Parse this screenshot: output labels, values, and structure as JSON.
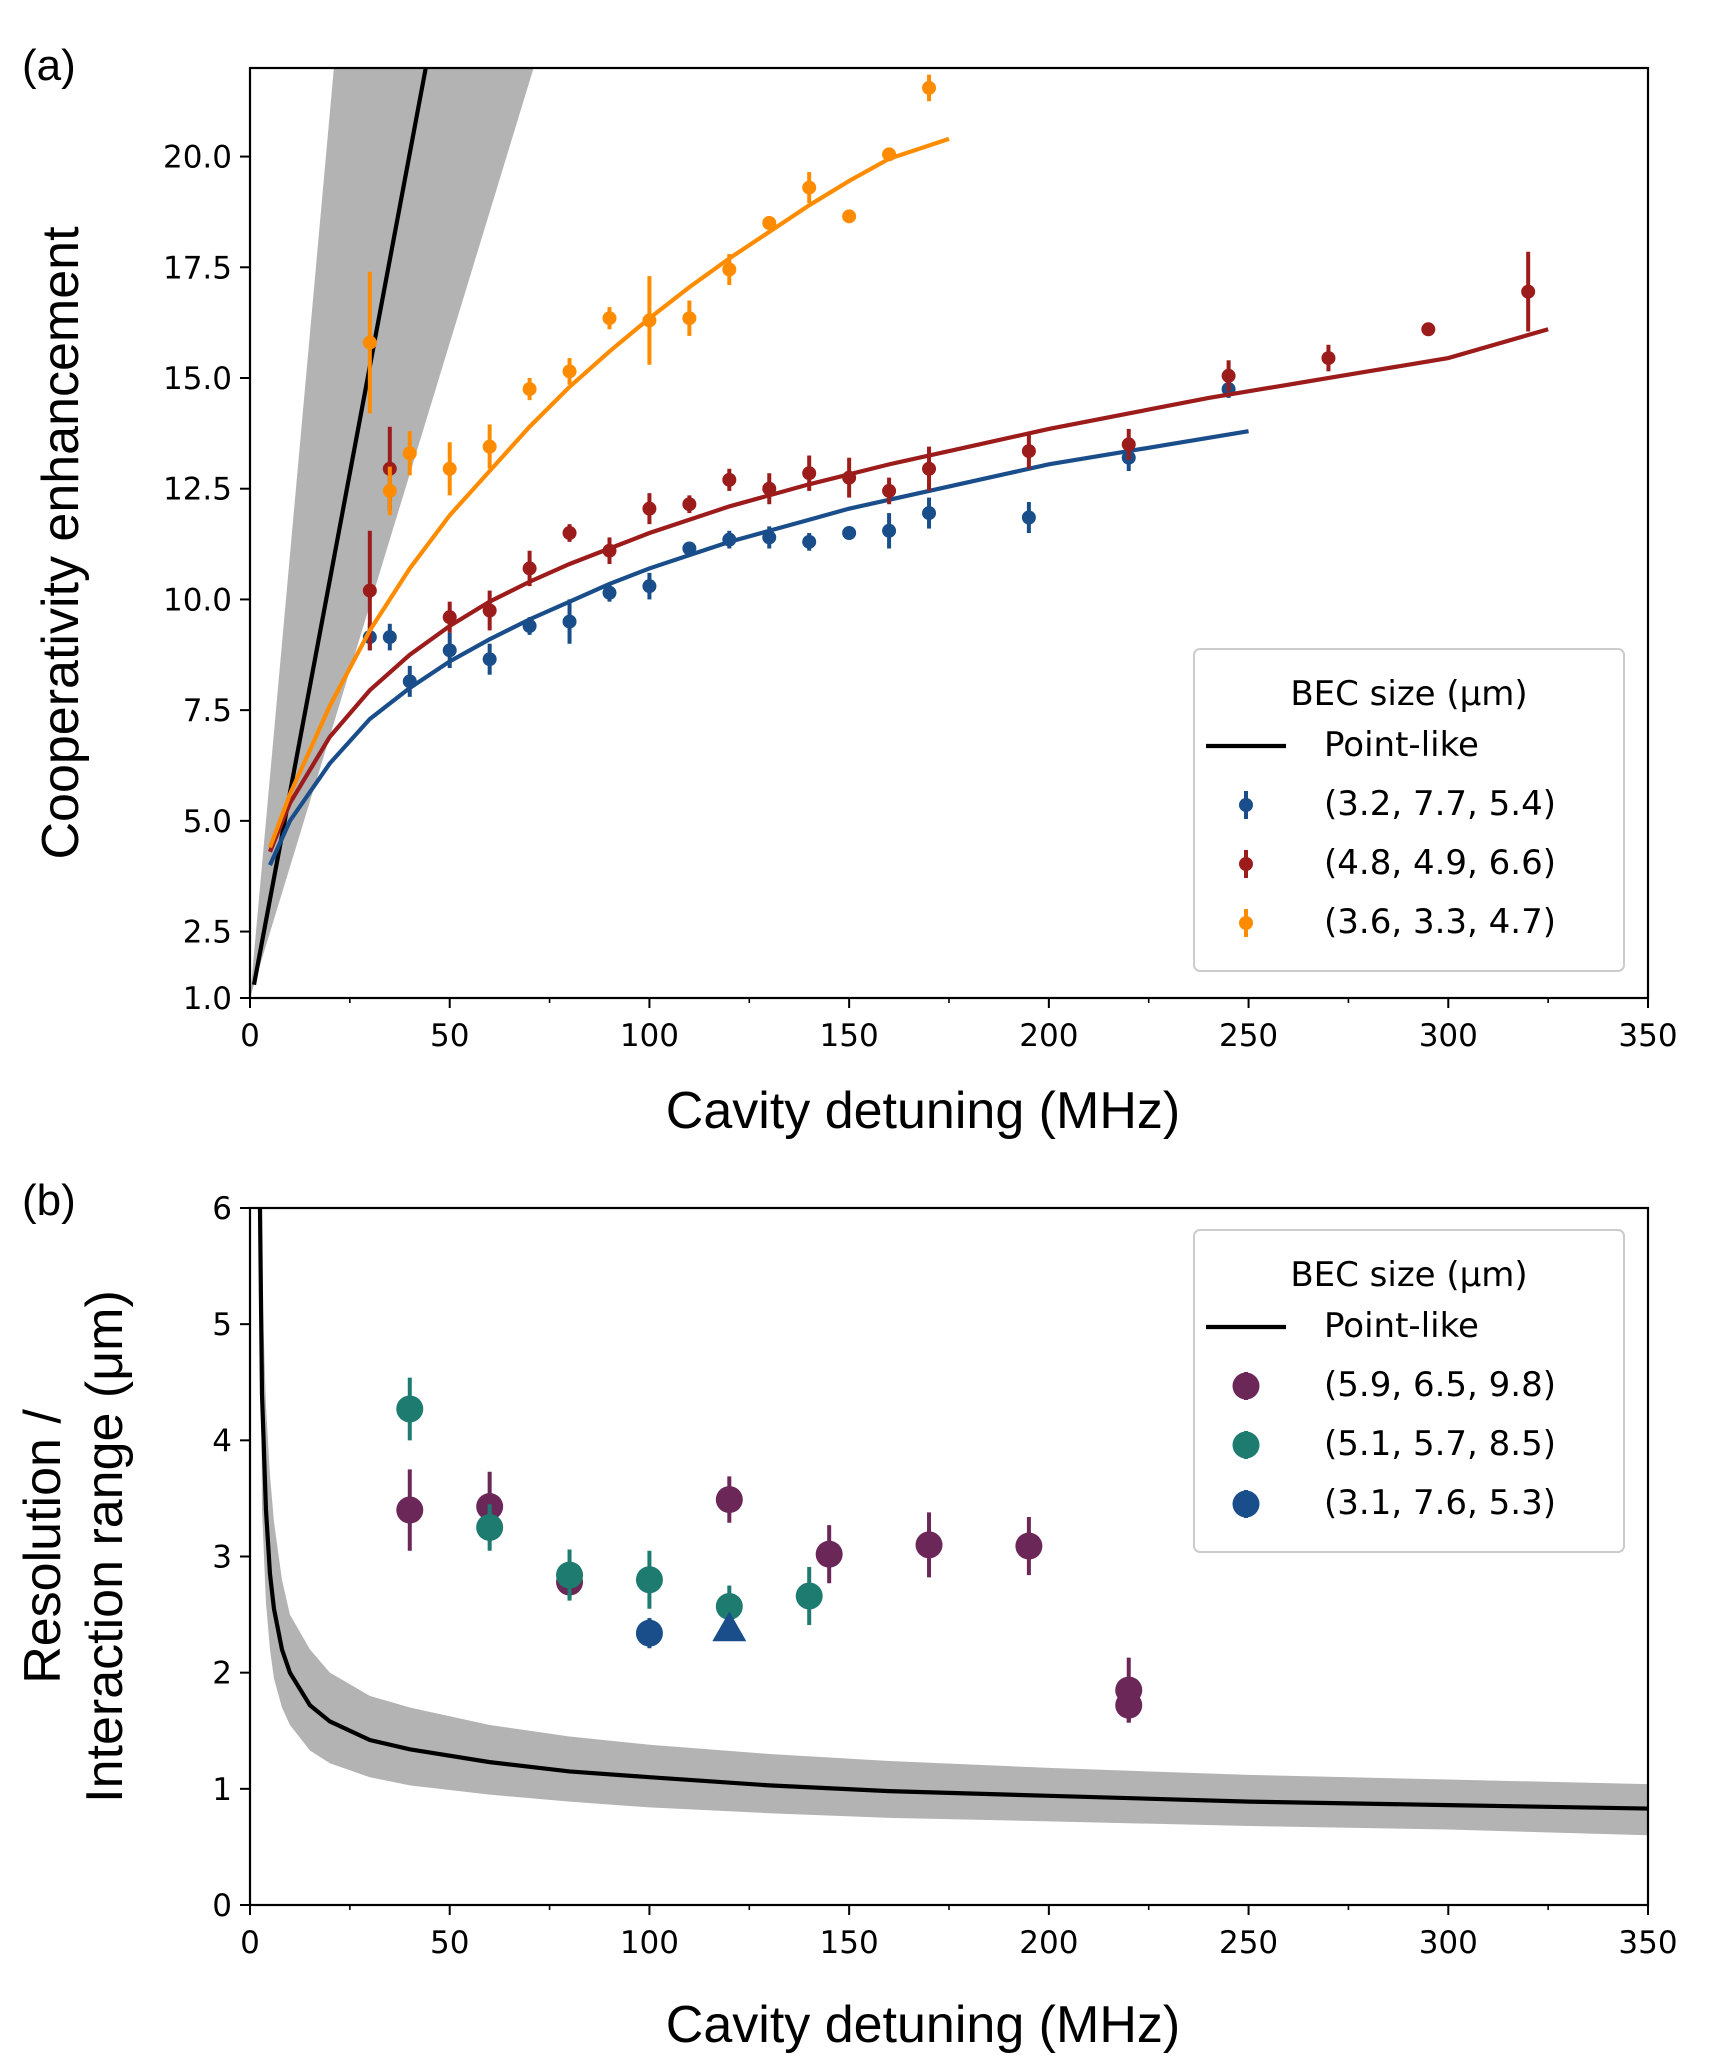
{
  "chart_data": [
    {
      "type": "scatter",
      "panel_label": "(a)",
      "xlabel": "Cavity detuning (MHz)",
      "ylabel": "Cooperativity enhancement",
      "xlim": [
        0,
        350
      ],
      "ylim": [
        1.0,
        22.0
      ],
      "xticks": [
        "0",
        "50",
        "100",
        "150",
        "200",
        "250",
        "300",
        "350"
      ],
      "yticks": [
        "1.0",
        "2.5",
        "5.0",
        "7.5",
        "10.0",
        "12.5",
        "15.0",
        "17.5",
        "20.0"
      ],
      "legend": {
        "title": "BEC size (μm)",
        "position": "bottom-right",
        "line_label": "Point-like"
      },
      "point_like": {
        "name": "Point-like",
        "color": "#000000",
        "band_color": "#b3b3b3",
        "x": [
          1,
          44
        ],
        "y": [
          1.3,
          22.0
        ],
        "band_upper_x": [
          0,
          21
        ],
        "band_lower_x": [
          0,
          71
        ]
      },
      "series": [
        {
          "name": "(3.2, 7.7, 5.4)",
          "color": "#1a4e8a",
          "x": [
            30,
            35,
            40,
            50,
            60,
            70,
            80,
            90,
            100,
            110,
            120,
            130,
            140,
            150,
            160,
            170,
            195,
            220,
            245
          ],
          "y": [
            9.15,
            9.15,
            8.15,
            8.85,
            8.65,
            9.4,
            9.5,
            10.15,
            10.3,
            11.15,
            11.35,
            11.4,
            11.3,
            11.5,
            11.55,
            11.95,
            11.85,
            13.2,
            14.75
          ],
          "err": [
            0.3,
            0.3,
            0.35,
            0.4,
            0.35,
            0.2,
            0.5,
            0.2,
            0.3,
            0.15,
            0.2,
            0.25,
            0.2,
            0.15,
            0.4,
            0.35,
            0.35,
            0.3,
            0.2
          ],
          "fit_x": [
            5,
            10,
            20,
            30,
            40,
            50,
            60,
            70,
            80,
            90,
            100,
            110,
            120,
            130,
            140,
            150,
            160,
            170,
            180,
            190,
            200,
            210,
            220,
            230,
            240,
            250
          ],
          "fit_y": [
            4.0,
            5.0,
            6.3,
            7.3,
            8.0,
            8.6,
            9.1,
            9.55,
            9.95,
            10.35,
            10.7,
            11.0,
            11.3,
            11.55,
            11.8,
            12.05,
            12.25,
            12.45,
            12.65,
            12.85,
            13.05,
            13.2,
            13.35,
            13.5,
            13.65,
            13.8
          ]
        },
        {
          "name": "(4.8, 4.9, 6.6)",
          "color": "#9c1b1b",
          "x": [
            30,
            35,
            50,
            60,
            70,
            80,
            90,
            100,
            110,
            120,
            130,
            140,
            150,
            160,
            170,
            195,
            220,
            245,
            270,
            295,
            320
          ],
          "y": [
            10.2,
            12.95,
            9.6,
            9.75,
            10.7,
            11.5,
            11.1,
            12.05,
            12.15,
            12.7,
            12.5,
            12.85,
            12.75,
            12.45,
            12.95,
            13.35,
            13.5,
            15.05,
            15.45,
            16.1,
            16.95
          ],
          "err": [
            1.35,
            0.95,
            0.35,
            0.45,
            0.4,
            0.2,
            0.3,
            0.35,
            0.2,
            0.25,
            0.35,
            0.4,
            0.45,
            0.3,
            0.5,
            0.4,
            0.35,
            0.35,
            0.3,
            0.15,
            0.9
          ],
          "fit_x": [
            5,
            10,
            20,
            30,
            40,
            50,
            60,
            70,
            80,
            90,
            100,
            120,
            140,
            160,
            180,
            200,
            220,
            240,
            260,
            280,
            300,
            325
          ],
          "fit_y": [
            4.3,
            5.4,
            6.9,
            7.95,
            8.75,
            9.4,
            9.95,
            10.4,
            10.8,
            11.15,
            11.5,
            12.1,
            12.6,
            13.05,
            13.45,
            13.85,
            14.2,
            14.55,
            14.85,
            15.15,
            15.45,
            16.1
          ]
        },
        {
          "name": "(3.6, 3.3, 4.7)",
          "color": "#ff8c00",
          "x": [
            30,
            35,
            40,
            50,
            60,
            70,
            80,
            90,
            100,
            110,
            120,
            130,
            140,
            150,
            160,
            170
          ],
          "y": [
            15.8,
            12.45,
            13.3,
            12.95,
            13.45,
            14.75,
            15.15,
            16.35,
            16.3,
            16.35,
            17.45,
            18.5,
            19.3,
            18.65,
            20.05,
            21.55
          ],
          "err": [
            1.6,
            0.55,
            0.5,
            0.6,
            0.5,
            0.25,
            0.3,
            0.25,
            1.0,
            0.4,
            0.35,
            0.15,
            0.35,
            0.15,
            0.15,
            0.3
          ],
          "fit_x": [
            5,
            10,
            20,
            30,
            40,
            50,
            60,
            70,
            80,
            90,
            100,
            110,
            120,
            130,
            140,
            150,
            160,
            175
          ],
          "fit_y": [
            4.4,
            5.6,
            7.6,
            9.3,
            10.7,
            11.9,
            12.9,
            13.9,
            14.8,
            15.6,
            16.35,
            17.05,
            17.7,
            18.3,
            18.9,
            19.45,
            19.95,
            20.4
          ]
        }
      ]
    },
    {
      "type": "scatter",
      "panel_label": "(b)",
      "xlabel": "Cavity detuning (MHz)",
      "ylabel_lines": [
        "Resolution /",
        "Interaction range (μm)"
      ],
      "xlim": [
        0,
        350
      ],
      "ylim": [
        0,
        6
      ],
      "xticks": [
        "0",
        "50",
        "100",
        "150",
        "200",
        "250",
        "300",
        "350"
      ],
      "yticks": [
        "0",
        "1",
        "2",
        "3",
        "4",
        "5",
        "6"
      ],
      "legend": {
        "title": "BEC size (μm)",
        "position": "top-right",
        "line_label": "Point-like"
      },
      "point_like": {
        "name": "Point-like",
        "color": "#000000",
        "band_color": "#b3b3b3",
        "x": [
          2.5,
          3,
          4,
          5,
          6,
          8,
          10,
          15,
          20,
          30,
          40,
          60,
          80,
          100,
          130,
          160,
          200,
          250,
          300,
          350
        ],
        "y": [
          6.0,
          4.4,
          3.4,
          2.85,
          2.55,
          2.2,
          2.0,
          1.72,
          1.58,
          1.42,
          1.34,
          1.23,
          1.15,
          1.1,
          1.03,
          0.98,
          0.94,
          0.89,
          0.86,
          0.83
        ],
        "band_upper": [
          6.0,
          5.4,
          4.3,
          3.7,
          3.3,
          2.8,
          2.5,
          2.2,
          2.0,
          1.8,
          1.7,
          1.55,
          1.45,
          1.38,
          1.3,
          1.24,
          1.18,
          1.12,
          1.08,
          1.04
        ],
        "band_lower": [
          6.0,
          3.4,
          2.6,
          2.2,
          1.95,
          1.7,
          1.55,
          1.33,
          1.22,
          1.1,
          1.03,
          0.95,
          0.89,
          0.84,
          0.79,
          0.75,
          0.72,
          0.68,
          0.65,
          0.6
        ]
      },
      "series": [
        {
          "name": "(5.9, 6.5, 9.8)",
          "color": "#6b2757",
          "marker": "circle",
          "x": [
            40,
            60,
            80,
            120,
            145,
            170,
            195,
            220,
            220
          ],
          "y": [
            3.4,
            3.43,
            2.78,
            3.49,
            3.02,
            3.1,
            3.09,
            1.85,
            1.72
          ],
          "err": [
            0.35,
            0.3,
            0.15,
            0.2,
            0.25,
            0.28,
            0.25,
            0.28,
            0.15
          ]
        },
        {
          "name": "(5.1, 5.7, 8.5)",
          "color": "#1e7b70",
          "marker": "circle",
          "x": [
            40,
            60,
            80,
            100,
            120,
            140
          ],
          "y": [
            4.27,
            3.25,
            2.84,
            2.8,
            2.57,
            2.66
          ],
          "err": [
            0.27,
            0.2,
            0.22,
            0.25,
            0.18,
            0.25
          ]
        },
        {
          "name": "(3.1, 7.6, 5.3)",
          "color": "#1a4e8a",
          "marker": "circle",
          "x": [
            100
          ],
          "y": [
            2.34
          ],
          "err": [
            0.13
          ]
        },
        {
          "name": "(3.1, 7.6, 5.3)",
          "color": "#1a4e8a",
          "marker": "triangle",
          "legend": false,
          "x": [
            120
          ],
          "y": [
            2.38
          ],
          "err": [
            0
          ]
        }
      ]
    }
  ]
}
